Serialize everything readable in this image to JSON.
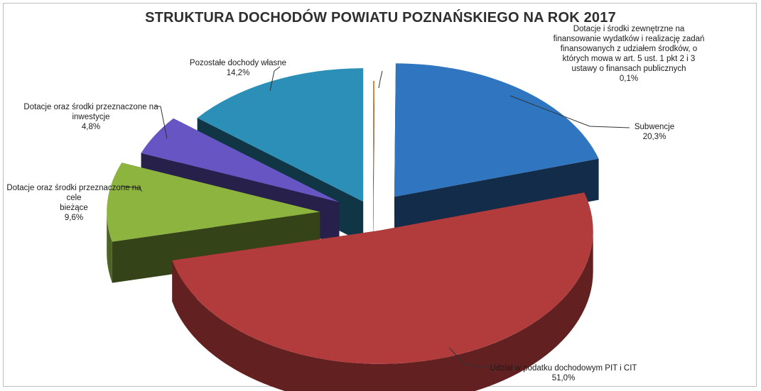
{
  "chart_data": {
    "type": "pie",
    "title": "STRUKTURA DOCHODÓW POWIATU POZNAŃSKIEGO NA ROK 2017",
    "categories": [
      "Dotacje i środki zewnętrzne na finansowanie wydatków i realizację zadań finansowanych z udziałem środków, o których mowa w art. 5 ust. 1 pkt 2 i 3 ustawy o finansach publicznych",
      "Subwencje",
      "Udział w podatku dochodowym PIT i CIT",
      "Dotacje oraz środki przeznaczone na cele bieżące",
      "Dotacje oraz środki przeznaczone na inwestycje",
      "Pozostałe dochody własne"
    ],
    "values": [
      0.1,
      20.3,
      51.0,
      9.6,
      4.8,
      14.2
    ],
    "value_labels": [
      "0,1%",
      "20,3%",
      "51,0%",
      "9,6%",
      "4,8%",
      "14,2%"
    ],
    "colors": [
      "#e07b1f",
      "#2f75c0",
      "#b23b3b",
      "#8cb43f",
      "#6655c2",
      "#2b8fb8"
    ],
    "style": "exploded-3d-pie",
    "legend": "none"
  },
  "labels": {
    "zewnetrzne": {
      "lines": [
        "Dotacje i środki zewnętrzne na",
        "finansowanie wydatków i realizację zadań",
        "finansowanych z udziałem środków, o",
        "których mowa w art. 5 ust. 1 pkt 2 i 3",
        "ustawy o finansach publicznych"
      ],
      "pct": "0,1%"
    },
    "subwencje": {
      "lines": [
        "Subwencje"
      ],
      "pct": "20,3%"
    },
    "udzial": {
      "lines": [
        "Udział w podatku dochodowym PIT i CIT"
      ],
      "pct": "51,0%"
    },
    "biezace": {
      "lines": [
        "Dotacje oraz środki przeznaczone na cele",
        "bieżące"
      ],
      "pct": "9,6%"
    },
    "inwestycje": {
      "lines": [
        "Dotacje oraz środki przeznaczone na",
        "inwestycje"
      ],
      "pct": "4,8%"
    },
    "pozostale": {
      "lines": [
        "Pozostałe dochody własne"
      ],
      "pct": "14,2%"
    }
  }
}
